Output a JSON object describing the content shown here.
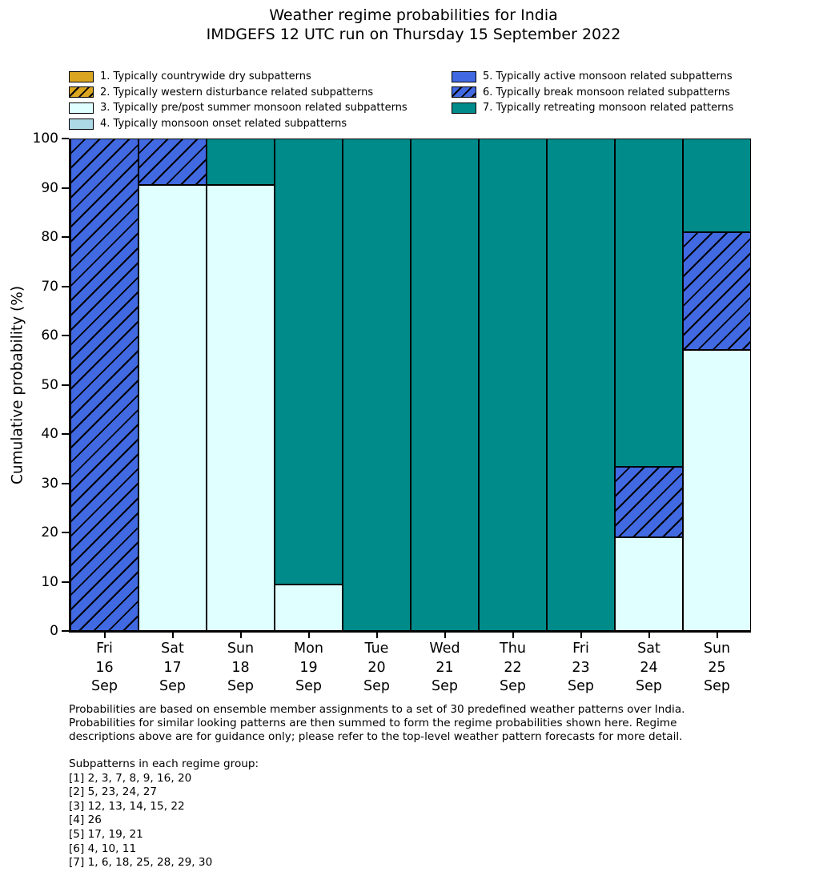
{
  "title": {
    "line1": "Weather regime probabilities for India",
    "line2": "IMDGEFS 12 UTC run on Thursday 15 September 2022"
  },
  "legend": {
    "left": [
      {
        "label": "1. Typically countrywide dry subpatterns",
        "color": "#DAA520",
        "hatch": false
      },
      {
        "label": "2. Typically western disturbance related subpatterns",
        "color": "#DAA520",
        "hatch": true
      },
      {
        "label": "3. Typically pre/post summer monsoon related subpatterns",
        "color": "#E0FFFF",
        "hatch": false
      },
      {
        "label": "4. Typically monsoon onset related subpatterns",
        "color": "#ADD8E6",
        "hatch": false
      }
    ],
    "right": [
      {
        "label": "5. Typically active monsoon related subpatterns",
        "color": "#4169E1",
        "hatch": false
      },
      {
        "label": "6. Typically break monsoon related subpatterns",
        "color": "#4169E1",
        "hatch": true
      },
      {
        "label": "7. Typically retreating monsoon related patterns",
        "color": "#008B8B",
        "hatch": false
      }
    ]
  },
  "chart_data": {
    "type": "bar",
    "stacked": true,
    "title": "Weather regime probabilities for India",
    "subtitle": "IMDGEFS 12 UTC run on Thursday 15 September 2022",
    "ylabel": "Cumulative probability (%)",
    "xlabel": "",
    "ylim": [
      0,
      100
    ],
    "yticks": [
      0,
      10,
      20,
      30,
      40,
      50,
      60,
      70,
      80,
      90,
      100
    ],
    "grid": false,
    "legend_position": "top",
    "categories_full": [
      "Fri 16 Sep",
      "Sat 17 Sep",
      "Sun 18 Sep",
      "Mon 19 Sep",
      "Tue 20 Sep",
      "Wed 21 Sep",
      "Thu 22 Sep",
      "Fri 23 Sep",
      "Sat 24 Sep",
      "Sun 25 Sep"
    ],
    "categories": [
      {
        "day": "Fri",
        "date": "16",
        "month": "Sep"
      },
      {
        "day": "Sat",
        "date": "17",
        "month": "Sep"
      },
      {
        "day": "Sun",
        "date": "18",
        "month": "Sep"
      },
      {
        "day": "Mon",
        "date": "19",
        "month": "Sep"
      },
      {
        "day": "Tue",
        "date": "20",
        "month": "Sep"
      },
      {
        "day": "Wed",
        "date": "21",
        "month": "Sep"
      },
      {
        "day": "Thu",
        "date": "22",
        "month": "Sep"
      },
      {
        "day": "Fri",
        "date": "23",
        "month": "Sep"
      },
      {
        "day": "Sat",
        "date": "24",
        "month": "Sep"
      },
      {
        "day": "Sun",
        "date": "25",
        "month": "Sep"
      }
    ],
    "series": [
      {
        "regime": 1,
        "name": "1. Typically countrywide dry subpatterns",
        "color": "#DAA520",
        "hatch": false,
        "values": [
          0,
          0,
          0,
          0,
          0,
          0,
          0,
          0,
          0,
          0
        ]
      },
      {
        "regime": 2,
        "name": "2. Typically western disturbance related subpatterns",
        "color": "#DAA520",
        "hatch": true,
        "values": [
          0,
          0,
          0,
          0,
          0,
          0,
          0,
          0,
          0,
          0
        ]
      },
      {
        "regime": 3,
        "name": "3. Typically pre/post summer monsoon related subpatterns",
        "color": "#E0FFFF",
        "hatch": false,
        "values": [
          0,
          90.5,
          90.5,
          9.5,
          0,
          0,
          0,
          0,
          19.0,
          57.1
        ]
      },
      {
        "regime": 4,
        "name": "4. Typically monsoon onset related subpatterns",
        "color": "#ADD8E6",
        "hatch": false,
        "values": [
          0,
          0,
          0,
          0,
          0,
          0,
          0,
          0,
          0,
          0
        ]
      },
      {
        "regime": 5,
        "name": "5. Typically active monsoon related subpatterns",
        "color": "#4169E1",
        "hatch": false,
        "values": [
          0,
          0,
          0,
          0,
          0,
          0,
          0,
          0,
          0,
          0
        ]
      },
      {
        "regime": 6,
        "name": "6. Typically break monsoon related subpatterns",
        "color": "#4169E1",
        "hatch": true,
        "values": [
          100,
          9.5,
          0,
          0,
          0,
          0,
          0,
          0,
          14.3,
          23.9
        ]
      },
      {
        "regime": 7,
        "name": "7. Typically retreating monsoon related patterns",
        "color": "#008B8B",
        "hatch": false,
        "values": [
          0,
          0,
          9.5,
          90.5,
          100,
          100,
          100,
          100,
          66.7,
          19.0
        ]
      }
    ]
  },
  "footnote_lines": [
    "Probabilities are based on ensemble member assignments to a set of 30 predefined weather patterns over India.",
    "Probabilities for similar looking patterns are then summed to form the regime probabilities shown here. Regime",
    "descriptions above are for guidance only; please refer to the top-level weather pattern forecasts for more detail."
  ],
  "subpatterns": {
    "heading": "Subpatterns in each regime group:",
    "lines": [
      "[1] 2, 3, 7, 8, 9, 16, 20",
      "[2] 5, 23, 24, 27",
      "[3] 12, 13, 14, 15, 22",
      "[4] 26",
      "[5] 17, 19, 21",
      "[6] 4, 10, 11",
      "[7] 1, 6, 18, 25, 28, 29, 30"
    ]
  }
}
